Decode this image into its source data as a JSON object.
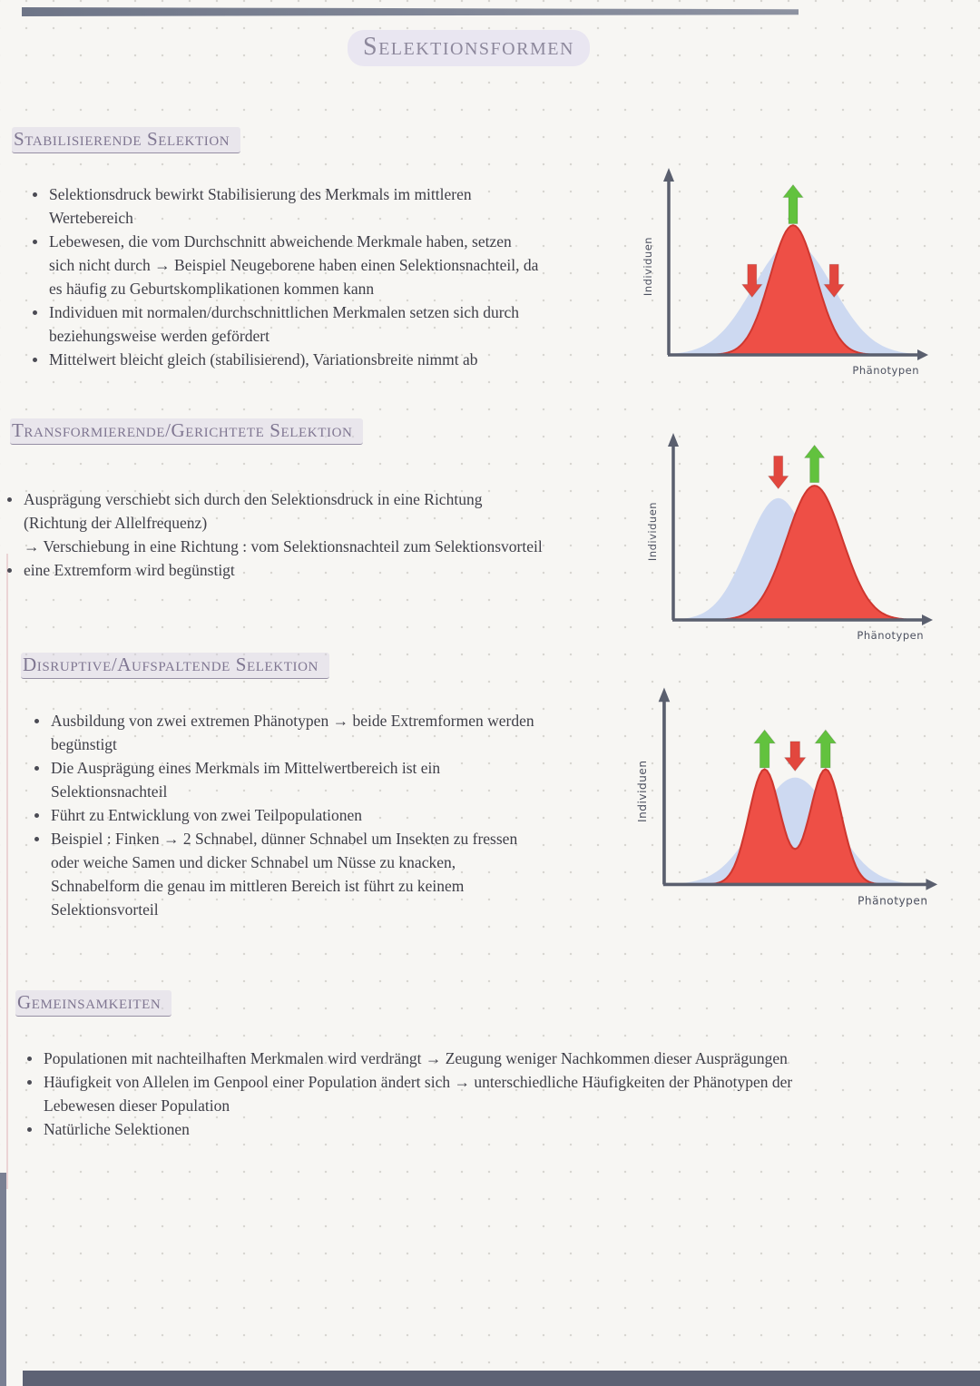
{
  "page": {
    "title": "Selektionsformen"
  },
  "colors": {
    "heading": "#7f7691",
    "body_text": "#3f3f48",
    "curve_original": "#cdd9f1",
    "curve_selected_fill": "#ee4f46",
    "curve_selected_stroke": "#cf372f",
    "arrow_up": "#62c23e",
    "arrow_down": "#e2473e",
    "axis": "#5a5f6e",
    "edge_strip": "#5d6274"
  },
  "sections": [
    {
      "heading": "Stabilisierende Selektion",
      "bullets": [
        "Selektionsdruck bewirkt Stabilisierung des Merkmals im mittleren\nWertebereich",
        "Lebewesen, die vom Durchschnitt abweichende Merkmale haben, setzen\nsich nicht durch → Beispiel Neugeborene haben einen Selektionsnachteil, da\nes häufig zu Geburtskomplikationen kommen kann",
        "Individuen mit normalen/durchschnittlichen Merkmalen setzen sich durch\nbeziehungsweise werden gefördert",
        "Mittelwert bleicht gleich (stabilisierend), Variationsbreite nimmt ab"
      ]
    },
    {
      "heading": "Transformierende/Gerichtete Selektion",
      "bullets": [
        "Ausprägung verschiebt sich durch den Selektionsdruck in eine Richtung\n(Richtung der Allelfrequenz)\n→ Verschiebung in eine Richtung : vom Selektionsnachteil zum Selektionsvorteil",
        "eine Extremform wird begünstigt"
      ]
    },
    {
      "heading": "Disruptive/Aufspaltende Selektion",
      "bullets": [
        "Ausbildung von zwei extremen Phänotypen → beide Extremformen werden\nbegünstigt",
        "Die Ausprägung eines Merkmals im Mittelwertbereich ist ein\nSelektionsnachteil",
        "Führt zu Entwicklung von zwei Teilpopulationen",
        "Beispiel : Finken → 2 Schnabel, dünner Schnabel um Insekten zu fressen\noder weiche Samen und dicker Schnabel um Nüsse zu knacken,\nSchnabelform die genau im mittleren Bereich ist führt zu keinem\nSelektionsvorteil"
      ]
    },
    {
      "heading": "Gemeinsamkeiten",
      "bullets": [
        "Populationen mit nachteilhaften Merkmalen wird verdrängt → Zeugung weniger Nachkommen dieser Ausprägungen",
        "Häufigkeit von Allelen im Genpool einer Population ändert sich → unterschiedliche Häufigkeiten der Phänotypen der\nLebewesen dieser Population",
        "Natürliche Selektionen"
      ]
    }
  ],
  "charts": [
    {
      "name": "stabilisierende-selektion-diagramm",
      "ylabel": "Individuen",
      "xlabel": "Phänotypen",
      "curves": [
        {
          "label": "ausgangspopulation",
          "fill": "#cdd9f1",
          "stroke": "none",
          "peaks": [
            {
              "c": 0.5,
              "s": 0.165,
              "h": 0.72
            }
          ]
        },
        {
          "label": "selektierte-population",
          "fill": "#ee4f46",
          "stroke": "#cf372f",
          "peaks": [
            {
              "c": 0.5,
              "s": 0.095,
              "h": 0.83
            }
          ]
        }
      ],
      "arrows": [
        {
          "dir": "down",
          "color": "#e2473e",
          "x": 0.33,
          "from": 0.58,
          "to": 0.37
        },
        {
          "dir": "up",
          "color": "#62c23e",
          "x": 0.5,
          "from": 0.84,
          "to": 1.09
        },
        {
          "dir": "down",
          "color": "#e2473e",
          "x": 0.67,
          "from": 0.58,
          "to": 0.37
        }
      ]
    },
    {
      "name": "gerichtete-selektion-diagramm",
      "ylabel": "Individuen",
      "xlabel": "Phänotypen",
      "curves": [
        {
          "label": "ausgangspopulation",
          "fill": "#cdd9f1",
          "stroke": "none",
          "peaks": [
            {
              "c": 0.42,
              "s": 0.13,
              "h": 0.78
            }
          ]
        },
        {
          "label": "selektierte-population",
          "fill": "#ee4f46",
          "stroke": "#cf372f",
          "peaks": [
            {
              "c": 0.57,
              "s": 0.115,
              "h": 0.86
            }
          ]
        }
      ],
      "arrows": [
        {
          "dir": "down",
          "color": "#e2473e",
          "x": 0.42,
          "from": 1.05,
          "to": 0.84
        },
        {
          "dir": "up",
          "color": "#62c23e",
          "x": 0.57,
          "from": 0.88,
          "to": 1.12
        }
      ]
    },
    {
      "name": "disruptive-selektion-diagramm",
      "ylabel": "Individuen",
      "xlabel": "Phänotypen",
      "curves": [
        {
          "label": "ausgangspopulation",
          "fill": "#cdd9f1",
          "stroke": "none",
          "peaks": [
            {
              "c": 0.5,
              "s": 0.15,
              "h": 0.65
            }
          ]
        },
        {
          "label": "selektierte-population",
          "fill": "#ee4f46",
          "stroke": "#cf372f",
          "peaks": [
            {
              "c": 0.38,
              "s": 0.062,
              "h": 0.7
            },
            {
              "c": 0.62,
              "s": 0.062,
              "h": 0.7
            }
          ]
        }
      ],
      "arrows": [
        {
          "dir": "up",
          "color": "#62c23e",
          "x": 0.38,
          "from": 0.71,
          "to": 0.94
        },
        {
          "dir": "down",
          "color": "#e2473e",
          "x": 0.5,
          "from": 0.87,
          "to": 0.69
        },
        {
          "dir": "up",
          "color": "#62c23e",
          "x": 0.62,
          "from": 0.71,
          "to": 0.94
        }
      ]
    }
  ]
}
